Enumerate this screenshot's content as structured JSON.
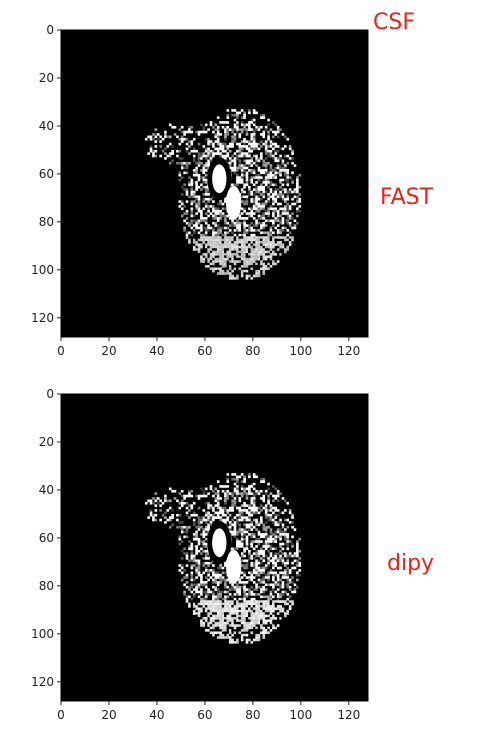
{
  "annotations": {
    "label_top_right": "CSF",
    "label_top_panel": "FAST",
    "label_bottom_panel": "dipy"
  },
  "colors": {
    "annotation": "#e8231d",
    "image_background": "#000000",
    "tissue_bright": "#ffffff"
  },
  "panels": [
    {
      "xticks": [
        "0",
        "20",
        "40",
        "60",
        "80",
        "100",
        "120"
      ],
      "yticks": [
        "0",
        "20",
        "40",
        "60",
        "80",
        "100",
        "120"
      ]
    },
    {
      "xticks": [
        "0",
        "20",
        "40",
        "60",
        "80",
        "100",
        "120"
      ],
      "yticks": [
        "0",
        "20",
        "40",
        "60",
        "80",
        "100",
        "120"
      ]
    }
  ]
}
